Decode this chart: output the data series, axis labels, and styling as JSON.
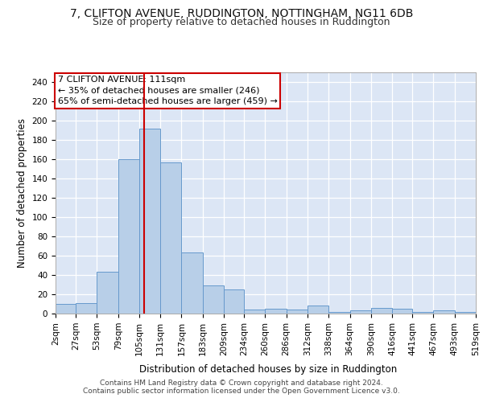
{
  "title1": "7, CLIFTON AVENUE, RUDDINGTON, NOTTINGHAM, NG11 6DB",
  "title2": "Size of property relative to detached houses in Ruddington",
  "xlabel": "Distribution of detached houses by size in Ruddington",
  "ylabel": "Number of detached properties",
  "annotation_line1": "7 CLIFTON AVENUE: 111sqm",
  "annotation_line2": "← 35% of detached houses are smaller (246)",
  "annotation_line3": "65% of semi-detached houses are larger (459) →",
  "footer1": "Contains HM Land Registry data © Crown copyright and database right 2024.",
  "footer2": "Contains public sector information licensed under the Open Government Licence v3.0.",
  "bin_edges": [
    2,
    27,
    53,
    79,
    105,
    131,
    157,
    183,
    209,
    234,
    260,
    286,
    312,
    338,
    364,
    390,
    416,
    441,
    467,
    493,
    519
  ],
  "bar_heights": [
    10,
    11,
    43,
    160,
    192,
    157,
    63,
    29,
    25,
    4,
    5,
    4,
    8,
    2,
    3,
    6,
    5,
    2,
    3,
    2
  ],
  "bar_color": "#b8cfe8",
  "bar_edge_color": "#6699cc",
  "red_line_x": 111,
  "ylim": [
    0,
    250
  ],
  "yticks": [
    0,
    20,
    40,
    60,
    80,
    100,
    120,
    140,
    160,
    180,
    200,
    220,
    240
  ],
  "background_color": "#dce6f5",
  "grid_color": "#ffffff",
  "annotation_box_color": "#ffffff",
  "annotation_box_edge_color": "#cc0000",
  "red_line_color": "#cc0000",
  "title1_fontsize": 10,
  "title2_fontsize": 9,
  "axis_label_fontsize": 8.5,
  "tick_fontsize": 7.5,
  "annotation_fontsize": 8,
  "footer_fontsize": 6.5
}
